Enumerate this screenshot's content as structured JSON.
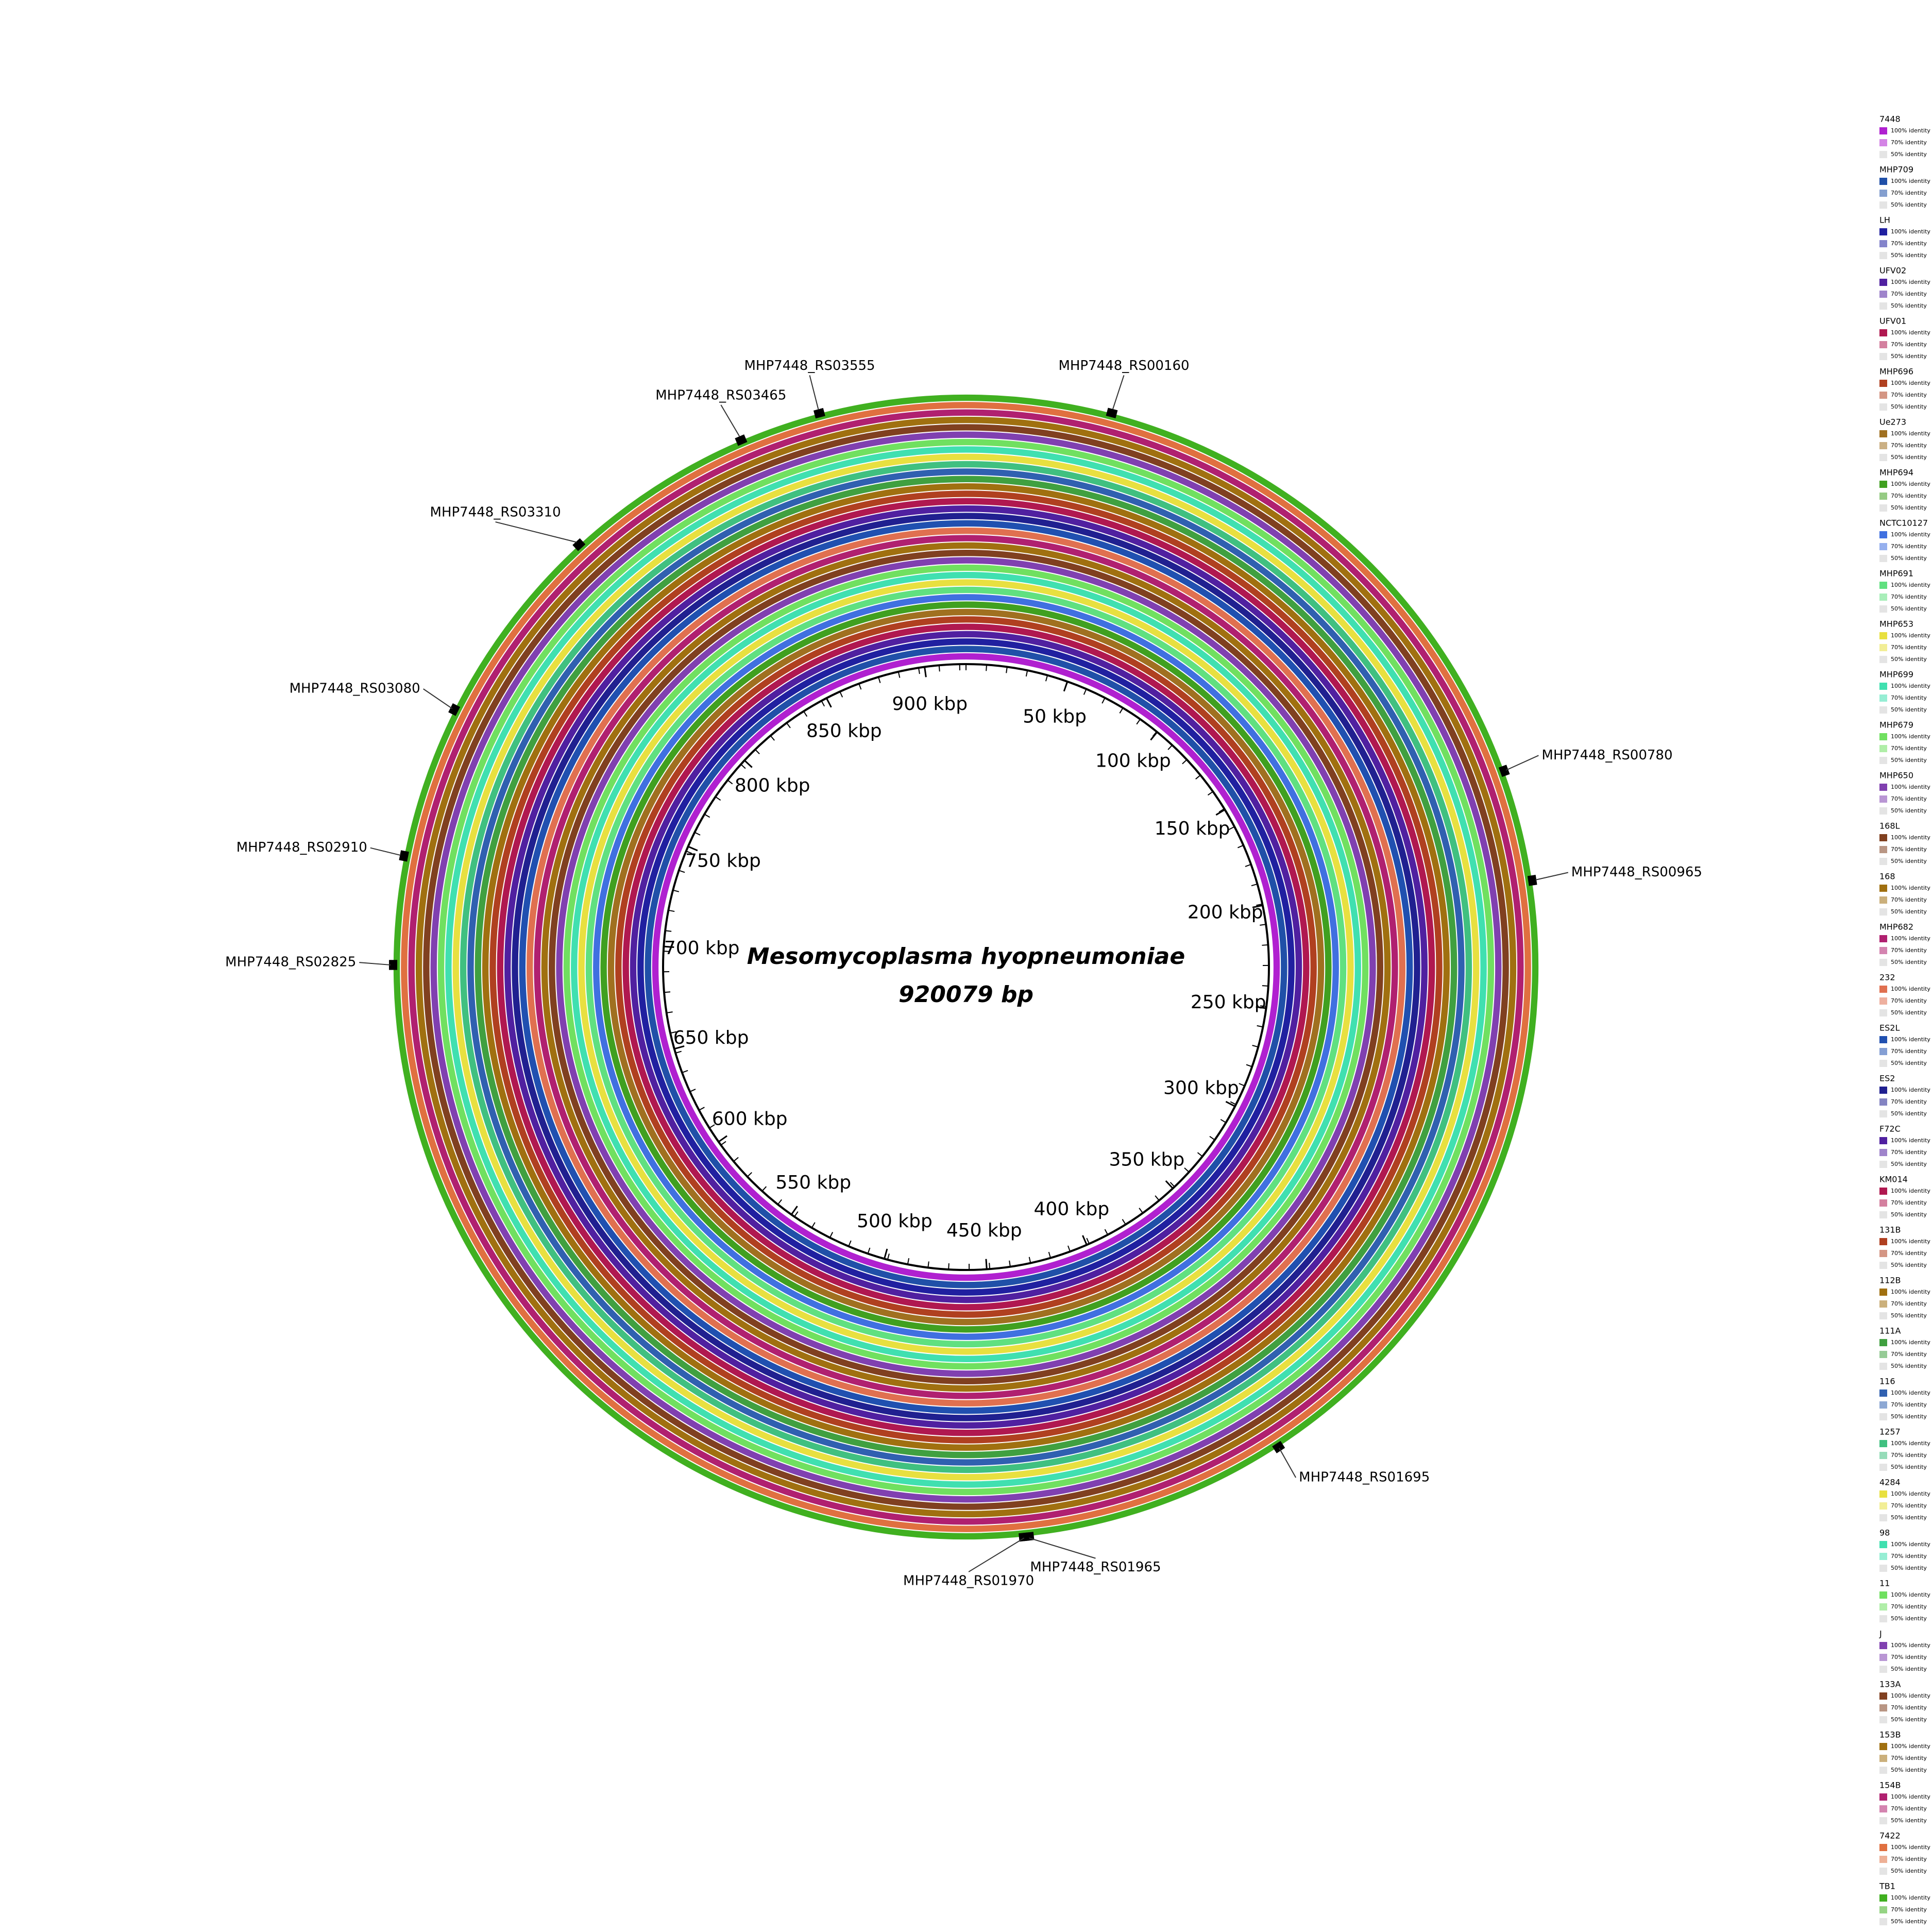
{
  "title": "Mesomycoplasma hyopneumoniae",
  "genome": {
    "value": 920079,
    "label": "920079 bp"
  },
  "scale": [
    {
      "value": 50,
      "label": "50 kbp"
    },
    {
      "value": 100,
      "label": "100 kbp"
    },
    {
      "value": 150,
      "label": "150 kbp"
    },
    {
      "value": 200,
      "label": "200 kbp"
    },
    {
      "value": 250,
      "label": "250 kbp"
    },
    {
      "value": 300,
      "label": "300 kbp"
    },
    {
      "value": 350,
      "label": "350 kbp"
    },
    {
      "value": 400,
      "label": "400 kbp"
    },
    {
      "value": 450,
      "label": "450 kbp"
    },
    {
      "value": 500,
      "label": "500 kbp"
    },
    {
      "value": 550,
      "label": "550 kbp"
    },
    {
      "value": 600,
      "label": "600 kbp"
    },
    {
      "value": 650,
      "label": "650 kbp"
    },
    {
      "value": 700,
      "label": "700 kbp"
    },
    {
      "value": 750,
      "label": "750 kbp"
    },
    {
      "value": 800,
      "label": "800 kbp"
    },
    {
      "value": 850,
      "label": "850 kbp"
    },
    {
      "value": 900,
      "label": "900 kbp"
    }
  ],
  "genes": [
    "MHP7448_RS00160",
    "MHP7448_RS00780",
    "MHP7448_RS00965",
    "MHP7448_RS01695",
    "MHP7448_RS01965",
    "MHP7448_RS01970",
    "MHP7448_RS02825",
    "MHP7448_RS02910",
    "MHP7448_RS03080",
    "MHP7448_RS03310",
    "MHP7448_RS03465",
    "MHP7448_RS03555"
  ],
  "identity_levels": [
    "100% identity",
    "70% identity",
    "50% identity"
  ],
  "legend": [
    {
      "name": "7448",
      "color": "#b020d0"
    },
    {
      "name": "MHP709",
      "color": "#2050a8"
    },
    {
      "name": "LH",
      "color": "#2020a0"
    },
    {
      "name": "UFV02",
      "color": "#5020a0"
    },
    {
      "name": "UFV01",
      "color": "#b01850"
    },
    {
      "name": "MHP696",
      "color": "#b04020"
    },
    {
      "name": "Ue273",
      "color": "#a07020"
    },
    {
      "name": "MHP694",
      "color": "#40a020"
    },
    {
      "name": "NCTC10127",
      "color": "#4070e0"
    },
    {
      "name": "MHP691",
      "color": "#60e080"
    },
    {
      "name": "MHP653",
      "color": "#e8e040"
    },
    {
      "name": "MHP699",
      "color": "#40e0b0"
    },
    {
      "name": "MHP679",
      "color": "#70e060"
    },
    {
      "name": "MHP650",
      "color": "#8040b0"
    },
    {
      "name": "168L",
      "color": "#804020"
    },
    {
      "name": "168",
      "color": "#a07010"
    },
    {
      "name": "MHP682",
      "color": "#b02070"
    },
    {
      "name": "232",
      "color": "#e07050"
    },
    {
      "name": "ES2L",
      "color": "#2050b0"
    },
    {
      "name": "ES2",
      "color": "#202090"
    },
    {
      "name": "F72C",
      "color": "#5020a0"
    },
    {
      "name": "KM014",
      "color": "#b01850"
    },
    {
      "name": "131B",
      "color": "#b04020"
    },
    {
      "name": "112B",
      "color": "#a07010"
    },
    {
      "name": "111A",
      "color": "#40a040"
    },
    {
      "name": "116",
      "color": "#3060b0"
    },
    {
      "name": "1257",
      "color": "#40c080"
    },
    {
      "name": "4284",
      "color": "#e8e040"
    },
    {
      "name": "98",
      "color": "#40e0b0"
    },
    {
      "name": "11",
      "color": "#70e060"
    },
    {
      "name": "J",
      "color": "#8040b0"
    },
    {
      "name": "133A",
      "color": "#804020"
    },
    {
      "name": "153B",
      "color": "#a07010"
    },
    {
      "name": "154B",
      "color": "#b02070"
    },
    {
      "name": "7422",
      "color": "#e07040"
    },
    {
      "name": "TB1",
      "color": "#40b020"
    }
  ]
}
